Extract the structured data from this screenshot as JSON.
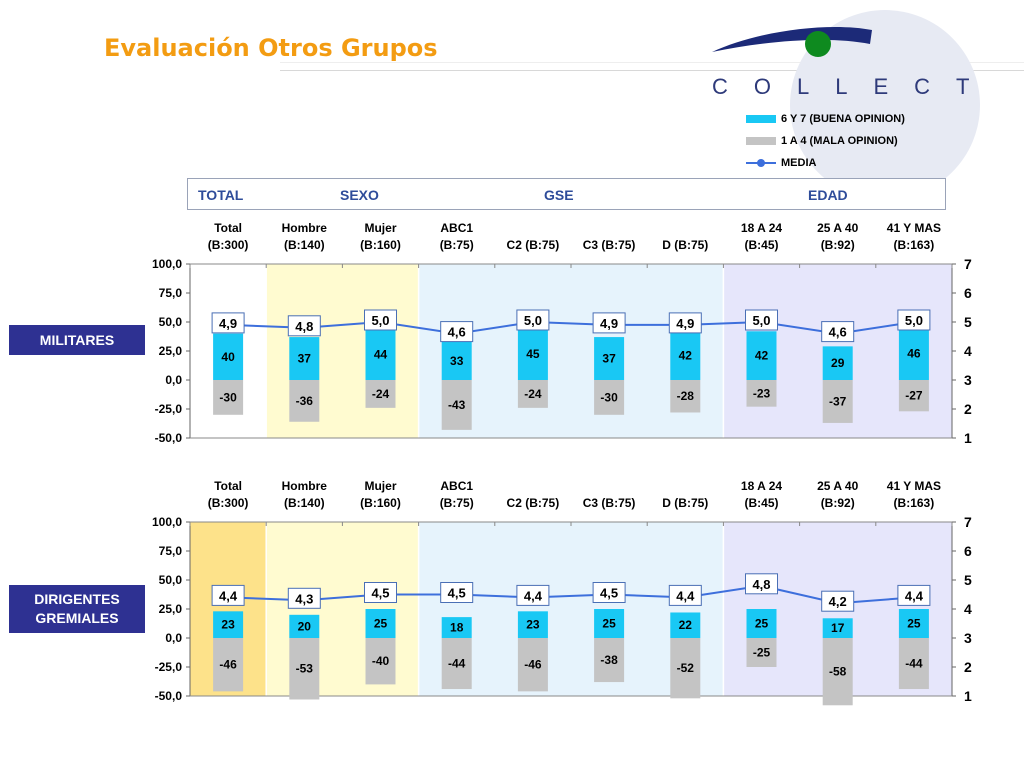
{
  "title": "Evaluación Otros Grupos",
  "logo": "COLLECT",
  "legend": [
    {
      "label": "6 Y 7 (BUENA OPINION)",
      "color": "#19c8f4"
    },
    {
      "label": "1 A 4 (MALA OPINION)",
      "color": "#c4c4c4"
    },
    {
      "label": "MEDIA",
      "color": "#3d6fdc"
    }
  ],
  "header_groups": [
    "TOTAL",
    "SEXO",
    "GSE",
    "EDAD"
  ],
  "colors": {
    "good": "#19c8f4",
    "bad": "#c4c4c4",
    "mean": "#3d6fdc",
    "band_sexo": "#fffbd0",
    "band_gse": "#e6f3fc",
    "band_edad": "#e6e6fb",
    "band_total_highlight": "#fde28a",
    "label_box": "#2e3192",
    "title": "#f39c12"
  },
  "chart_data": [
    {
      "type": "bar",
      "row_label": [
        "MILITARES"
      ],
      "categories": [
        "Total (B:300)",
        "Hombre (B:140)",
        "Mujer (B:160)",
        "ABC1 (B:75)",
        "C2 (B:75)",
        "C3 (B:75)",
        "D (B:75)",
        "18 A 24 (B:45)",
        "25 A 40 (B:92)",
        "41 Y MAS (B:163)"
      ],
      "category_lines": [
        [
          "Total",
          "(B:300)"
        ],
        [
          "Hombre",
          "(B:140)"
        ],
        [
          "Mujer",
          "(B:160)"
        ],
        [
          "ABC1",
          "(B:75)"
        ],
        [
          "",
          "C2 (B:75)"
        ],
        [
          "",
          "C3 (B:75)"
        ],
        [
          "",
          "D (B:75)"
        ],
        [
          "18 A 24",
          "(B:45)"
        ],
        [
          "25 A 40",
          "(B:92)"
        ],
        [
          "41 Y MAS",
          "(B:163)"
        ]
      ],
      "series": [
        {
          "name": "6 Y 7 (BUENA OPINION)",
          "values": [
            40,
            37,
            44,
            33,
            45,
            37,
            42,
            42,
            29,
            46
          ]
        },
        {
          "name": "1 A 4 (MALA OPINION)",
          "values": [
            -30,
            -36,
            -24,
            -43,
            -24,
            -30,
            -28,
            -23,
            -37,
            -27
          ]
        },
        {
          "name": "MEDIA",
          "values": [
            4.9,
            4.8,
            5.0,
            4.6,
            5.0,
            4.9,
            4.9,
            5.0,
            4.6,
            5.0
          ],
          "labels": [
            "4,9",
            "4,8",
            "5,0",
            "4,6",
            "5,0",
            "4,9",
            "4,9",
            "5,0",
            "4,6",
            "5,0"
          ]
        }
      ],
      "good_labels": [
        "40",
        "37",
        "44",
        "33",
        "45",
        "37",
        "42",
        "42",
        "29",
        "46"
      ],
      "bad_labels": [
        "-30",
        "-36",
        "-24",
        "-43",
        "-24",
        "-30",
        "-28",
        "-23",
        "-37",
        "-27"
      ],
      "yticks_left": [
        "100,0",
        "75,0",
        "50,0",
        "25,0",
        "0,0",
        "-25,0",
        "-50,0"
      ],
      "yticks_right": [
        "7",
        "6",
        "5",
        "4",
        "3",
        "2",
        "1"
      ],
      "ylim": [
        -50,
        100
      ],
      "y2lim": [
        1,
        7
      ],
      "highlight_total": false
    },
    {
      "type": "bar",
      "row_label": [
        "DIRIGENTES",
        "GREMIALES"
      ],
      "categories": [
        "Total (B:300)",
        "Hombre (B:140)",
        "Mujer (B:160)",
        "ABC1 (B:75)",
        "C2 (B:75)",
        "C3 (B:75)",
        "D (B:75)",
        "18 A 24 (B:45)",
        "25 A 40 (B:92)",
        "41 Y MAS (B:163)"
      ],
      "category_lines": [
        [
          "Total",
          "(B:300)"
        ],
        [
          "Hombre",
          "(B:140)"
        ],
        [
          "Mujer",
          "(B:160)"
        ],
        [
          "ABC1",
          "(B:75)"
        ],
        [
          "",
          "C2 (B:75)"
        ],
        [
          "",
          "C3 (B:75)"
        ],
        [
          "",
          "D (B:75)"
        ],
        [
          "18 A 24",
          "(B:45)"
        ],
        [
          "25 A 40",
          "(B:92)"
        ],
        [
          "41 Y MAS",
          "(B:163)"
        ]
      ],
      "series": [
        {
          "name": "6 Y 7 (BUENA OPINION)",
          "values": [
            23,
            20,
            25,
            18,
            23,
            25,
            22,
            25,
            17,
            25
          ]
        },
        {
          "name": "1 A 4 (MALA OPINION)",
          "values": [
            -46,
            -53,
            -40,
            -44,
            -46,
            -38,
            -52,
            -25,
            -58,
            -44
          ]
        },
        {
          "name": "MEDIA",
          "values": [
            4.4,
            4.3,
            4.5,
            4.5,
            4.4,
            4.5,
            4.4,
            4.8,
            4.2,
            4.4
          ],
          "labels": [
            "4,4",
            "4,3",
            "4,5",
            "4,5",
            "4,4",
            "4,5",
            "4,4",
            "4,8",
            "4,2",
            "4,4"
          ]
        }
      ],
      "good_labels": [
        "23",
        "20",
        "25",
        "18",
        "23",
        "25",
        "22",
        "25",
        "17",
        "25"
      ],
      "bad_labels": [
        "-46",
        "-53",
        "-40",
        "-44",
        "-46",
        "-38",
        "-52",
        "-25",
        "-58",
        "-44"
      ],
      "yticks_left": [
        "100,0",
        "75,0",
        "50,0",
        "25,0",
        "0,0",
        "-25,0",
        "-50,0"
      ],
      "yticks_right": [
        "7",
        "6",
        "5",
        "4",
        "3",
        "2",
        "1"
      ],
      "ylim": [
        -50,
        100
      ],
      "y2lim": [
        1,
        7
      ],
      "highlight_total": true
    }
  ]
}
